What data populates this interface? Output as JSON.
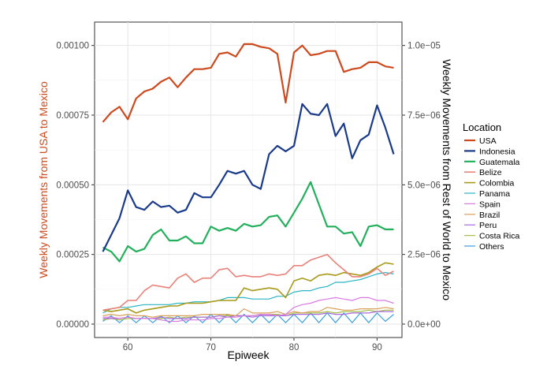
{
  "chart_data": {
    "type": "line",
    "xlabel": "Epiweek",
    "ylabel_left": "Weekly Movements from USA to Mexico",
    "ylabel_right": "Weekly Movements from Rest of World to Mexico",
    "xlim": [
      56,
      93
    ],
    "ylim_left": [
      0,
      0.00105
    ],
    "ylim_right": [
      0,
      1.05e-05
    ],
    "x_ticks": [
      60,
      70,
      80,
      90
    ],
    "y_ticks_left": [
      {
        "value": 0,
        "label": "0.00000"
      },
      {
        "value": 0.00025,
        "label": "0.00025"
      },
      {
        "value": 0.0005,
        "label": "0.00050"
      },
      {
        "value": 0.00075,
        "label": "0.00075"
      },
      {
        "value": 0.001,
        "label": "0.00100"
      }
    ],
    "y_ticks_right": [
      {
        "value": 0,
        "label": "0.0e+00"
      },
      {
        "value": 2.5e-06,
        "label": "2.5e−06"
      },
      {
        "value": 5e-06,
        "label": "5.0e−06"
      },
      {
        "value": 7.5e-06,
        "label": "7.5e−06"
      },
      {
        "value": 1e-05,
        "label": "1.0e−05"
      }
    ],
    "x": [
      57,
      58,
      59,
      60,
      61,
      62,
      63,
      64,
      65,
      66,
      67,
      68,
      69,
      70,
      71,
      72,
      73,
      74,
      75,
      76,
      77,
      78,
      79,
      80,
      81,
      82,
      83,
      84,
      85,
      86,
      87,
      88,
      89,
      90,
      91,
      92
    ],
    "legend_title": "Location",
    "colors": {
      "left_axis_label": "#cc4a1e"
    },
    "series": [
      {
        "name": "USA",
        "axis": "left",
        "color": "#cc4a1e",
        "width": 2.2,
        "values": [
          0.000725,
          0.00076,
          0.00078,
          0.000735,
          0.00081,
          0.000835,
          0.000845,
          0.00087,
          0.000885,
          0.00085,
          0.000885,
          0.000915,
          0.000915,
          0.00092,
          0.00097,
          0.000975,
          0.00096,
          0.001005,
          0.001005,
          0.000995,
          0.00099,
          0.00097,
          0.000795,
          0.000975,
          0.001,
          0.000965,
          0.00097,
          0.00098,
          0.00098,
          0.000905,
          0.000915,
          0.00092,
          0.00094,
          0.00094,
          0.000925,
          0.00092
        ]
      },
      {
        "name": "Indonesia",
        "axis": "right",
        "color": "#1a3a8a",
        "width": 2.2,
        "values": [
          2.6e-06,
          3.2e-06,
          3.8e-06,
          4.8e-06,
          4.2e-06,
          4.1e-06,
          4.4e-06,
          4.2e-06,
          4.25e-06,
          4e-06,
          4.1e-06,
          4.7e-06,
          4.55e-06,
          4.55e-06,
          5e-06,
          5.5e-06,
          5.4e-06,
          5.5e-06,
          5e-06,
          4.85e-06,
          6.1e-06,
          6.4e-06,
          6.2e-06,
          6.4e-06,
          7.9e-06,
          7.55e-06,
          7.5e-06,
          7.9e-06,
          6.75e-06,
          7.2e-06,
          5.95e-06,
          6.6e-06,
          6.8e-06,
          7.85e-06,
          7.05e-06,
          6.1e-06
        ]
      },
      {
        "name": "Guatemala",
        "axis": "right",
        "color": "#23b05c",
        "width": 2.2,
        "values": [
          2.75e-06,
          2.6e-06,
          2.25e-06,
          2.8e-06,
          2.6e-06,
          2.7e-06,
          3.2e-06,
          3.4e-06,
          3e-06,
          3e-06,
          3.15e-06,
          2.9e-06,
          2.9e-06,
          3.5e-06,
          3.35e-06,
          3.45e-06,
          3.35e-06,
          3.6e-06,
          3.5e-06,
          3.55e-06,
          3.85e-06,
          3.9e-06,
          3.5e-06,
          4e-06,
          4.5e-06,
          5.1e-06,
          4.3e-06,
          3.5e-06,
          3.5e-06,
          3.25e-06,
          3.3e-06,
          2.8e-06,
          3.5e-06,
          3.55e-06,
          3.4e-06,
          3.4e-06
        ]
      },
      {
        "name": "Belize",
        "axis": "right",
        "color": "#e8827a",
        "width": 1.6,
        "values": [
          5e-07,
          5.5e-07,
          6e-07,
          8.5e-07,
          8.5e-07,
          1.2e-06,
          1.4e-06,
          1.35e-06,
          1.3e-06,
          1.65e-06,
          1.8e-06,
          1.5e-06,
          1.65e-06,
          1.65e-06,
          1.95e-06,
          2e-06,
          1.7e-06,
          1.75e-06,
          1.7e-06,
          1.7e-06,
          1.8e-06,
          1.75e-06,
          1.8e-06,
          2.1e-06,
          2.1e-06,
          2.3e-06,
          2.4e-06,
          2.5e-06,
          2.2e-06,
          1.95e-06,
          1.7e-06,
          1.7e-06,
          1.8e-06,
          2e-06,
          1.75e-06,
          1.9e-06
        ]
      },
      {
        "name": "Colombia",
        "axis": "right",
        "color": "#a89a1a",
        "width": 1.6,
        "values": [
          5e-07,
          4.5e-07,
          5e-07,
          5.5e-07,
          4e-07,
          5e-07,
          5.5e-07,
          6e-07,
          6.5e-07,
          6.5e-07,
          7.5e-07,
          7.5e-07,
          7.5e-07,
          8e-07,
          8.5e-07,
          8.5e-07,
          8.5e-07,
          1.3e-06,
          1.2e-06,
          1.25e-06,
          1.3e-06,
          1.25e-06,
          9.5e-07,
          1.55e-06,
          1.65e-06,
          1.55e-06,
          1.75e-06,
          1.8e-06,
          1.75e-06,
          1.85e-06,
          1.8e-06,
          1.75e-06,
          1.85e-06,
          2.05e-06,
          2.2e-06,
          2.15e-06
        ]
      },
      {
        "name": "Panama",
        "axis": "right",
        "color": "#2ab4c4",
        "width": 1.2,
        "values": [
          4e-07,
          5.5e-07,
          6e-07,
          6e-07,
          6.5e-07,
          7e-07,
          7e-07,
          7e-07,
          7e-07,
          7.5e-07,
          7.5e-07,
          8e-07,
          8e-07,
          8e-07,
          8.5e-07,
          9.5e-07,
          9.5e-07,
          9.5e-07,
          9e-07,
          9e-07,
          9e-07,
          1e-06,
          1e-06,
          1.15e-06,
          1.2e-06,
          1.2e-06,
          1.3e-06,
          1.35e-06,
          1.5e-06,
          1.5e-06,
          1.55e-06,
          1.6e-06,
          1.7e-06,
          1.8e-06,
          1.85e-06,
          1.8e-06
        ]
      },
      {
        "name": "Spain",
        "axis": "right",
        "color": "#d97ae0",
        "width": 1.2,
        "values": [
          2.5e-07,
          2.5e-07,
          2e-07,
          2.5e-07,
          2e-07,
          2e-07,
          2e-07,
          1.5e-07,
          1e-07,
          1e-07,
          1.5e-07,
          1.5e-07,
          1.5e-07,
          2e-07,
          2e-07,
          2.5e-07,
          2.5e-07,
          3e-07,
          3e-07,
          3.5e-07,
          3.5e-07,
          3e-07,
          3.5e-07,
          6e-07,
          7e-07,
          7.5e-07,
          8.5e-07,
          9e-07,
          9.5e-07,
          9e-07,
          8.5e-07,
          9.5e-07,
          9.5e-07,
          8.5e-07,
          8.5e-07,
          7.5e-07
        ]
      },
      {
        "name": "Brazil",
        "axis": "right",
        "color": "#d9a05a",
        "width": 1.2,
        "values": [
          3e-07,
          3.5e-07,
          3e-07,
          3.5e-07,
          3e-07,
          3e-07,
          2.5e-07,
          3e-07,
          3e-07,
          3e-07,
          3e-07,
          3e-07,
          3.5e-07,
          3.5e-07,
          3.5e-07,
          3.5e-07,
          3e-07,
          5.5e-07,
          4e-07,
          4e-07,
          4e-07,
          4.5e-07,
          3.5e-07,
          4.5e-07,
          4e-07,
          4.5e-07,
          4.5e-07,
          6e-07,
          5.5e-07,
          5e-07,
          5e-07,
          5.5e-07,
          5.5e-07,
          5.5e-07,
          6e-07,
          5.5e-07
        ]
      },
      {
        "name": "Peru",
        "axis": "right",
        "color": "#a86be0",
        "width": 1.2,
        "values": [
          2e-07,
          2e-07,
          2e-07,
          2.5e-07,
          2e-07,
          2e-07,
          2e-07,
          2.5e-07,
          2e-07,
          2e-07,
          2e-07,
          2.5e-07,
          2.5e-07,
          2.5e-07,
          3e-07,
          2.5e-07,
          3e-07,
          3e-07,
          2.5e-07,
          3e-07,
          3e-07,
          3e-07,
          3e-07,
          3.5e-07,
          3.5e-07,
          3.5e-07,
          3.5e-07,
          4e-07,
          3.5e-07,
          3.5e-07,
          4e-07,
          4e-07,
          4e-07,
          4.5e-07,
          4.5e-07,
          4.5e-07
        ]
      },
      {
        "name": "Costa Rica",
        "axis": "right",
        "color": "#a4c04a",
        "width": 1.2,
        "values": [
          1.5e-07,
          2e-07,
          1.5e-07,
          2e-07,
          2e-07,
          2e-07,
          2e-07,
          2e-07,
          2.5e-07,
          2e-07,
          2.5e-07,
          2.5e-07,
          2.5e-07,
          2.5e-07,
          3e-07,
          3e-07,
          3e-07,
          3e-07,
          3e-07,
          3.5e-07,
          3.5e-07,
          3.5e-07,
          3e-07,
          4e-07,
          4e-07,
          4e-07,
          4e-07,
          4.5e-07,
          4e-07,
          4.5e-07,
          4.5e-07,
          4.5e-07,
          5e-07,
          4.5e-07,
          5e-07,
          5e-07
        ]
      },
      {
        "name": "Others",
        "axis": "right",
        "color": "#3aa0e0",
        "width": 1.2,
        "values": [
          1e-07,
          3e-07,
          5e-08,
          3e-07,
          5e-08,
          3e-07,
          5e-08,
          3e-07,
          5e-08,
          3e-07,
          5e-08,
          3e-07,
          5e-08,
          3.5e-07,
          5e-08,
          3.5e-07,
          5e-08,
          3.5e-07,
          5e-08,
          3.5e-07,
          5e-08,
          3.5e-07,
          5e-08,
          3.5e-07,
          5e-08,
          4e-07,
          5e-08,
          4e-07,
          5e-08,
          4e-07,
          5e-08,
          4e-07,
          5e-08,
          4e-07,
          1e-07,
          3.5e-07
        ]
      }
    ]
  }
}
